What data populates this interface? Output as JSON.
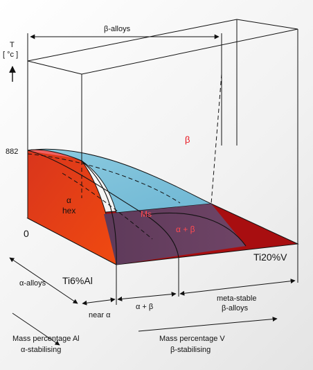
{
  "axis": {
    "t_symbol": "T",
    "t_unit": "[ °c ]",
    "tick_882": "882",
    "tick_0": "0"
  },
  "top": {
    "beta_alloys": "β-alloys"
  },
  "phases": {
    "beta": "β",
    "alpha": "α",
    "hex": "hex",
    "ms": "Ms",
    "alpha_beta": "α + β"
  },
  "corners": {
    "ti6al": "Ti6%Al",
    "ti20v": "Ti20%V"
  },
  "bottom": {
    "alpha_alloys": "α-alloys",
    "near_alpha": "near α",
    "alpha_beta": "α + β",
    "metastable_1": "meta-stable",
    "metastable_2": "β-alloys"
  },
  "captions": {
    "al_1": "Mass percentage Al",
    "al_2": "α-stabilising",
    "v_1": "Mass percentage V",
    "v_2": "β-stabilising"
  },
  "colors": {
    "beta_surface": "#7fc4dc",
    "alpha_surface": "#e23a1e",
    "alpha_top": "#f06060",
    "floor": "#a80e10",
    "mixed_region": "#6b3e5f",
    "ms_label": "#ff4a52",
    "beta_label": "#e8141e"
  }
}
